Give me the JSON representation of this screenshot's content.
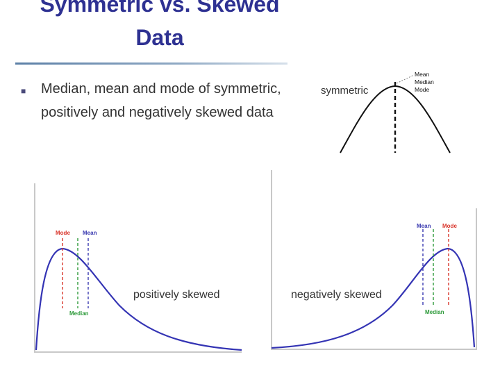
{
  "slide": {
    "title": "Symmetric vs. Skewed Data",
    "bullet": "Median, mean and mode of symmetric, positively and negatively skewed data"
  },
  "symmetric": {
    "label": "symmetric",
    "annotation": [
      "Mean",
      "Median",
      "Mode"
    ]
  },
  "positive": {
    "label": "positively skewed",
    "mode_label": "Mode",
    "mean_label": "Mean",
    "median_label": "Median"
  },
  "negative": {
    "label": "negatively skewed",
    "mean_label": "Mean",
    "mode_label": "Mode",
    "median_label": "Median"
  },
  "colors": {
    "title": "#2e3192",
    "curve": "#3434b4",
    "mode": "#d9352b",
    "mean": "#3a3ab0",
    "median": "#2d9a3a"
  }
}
